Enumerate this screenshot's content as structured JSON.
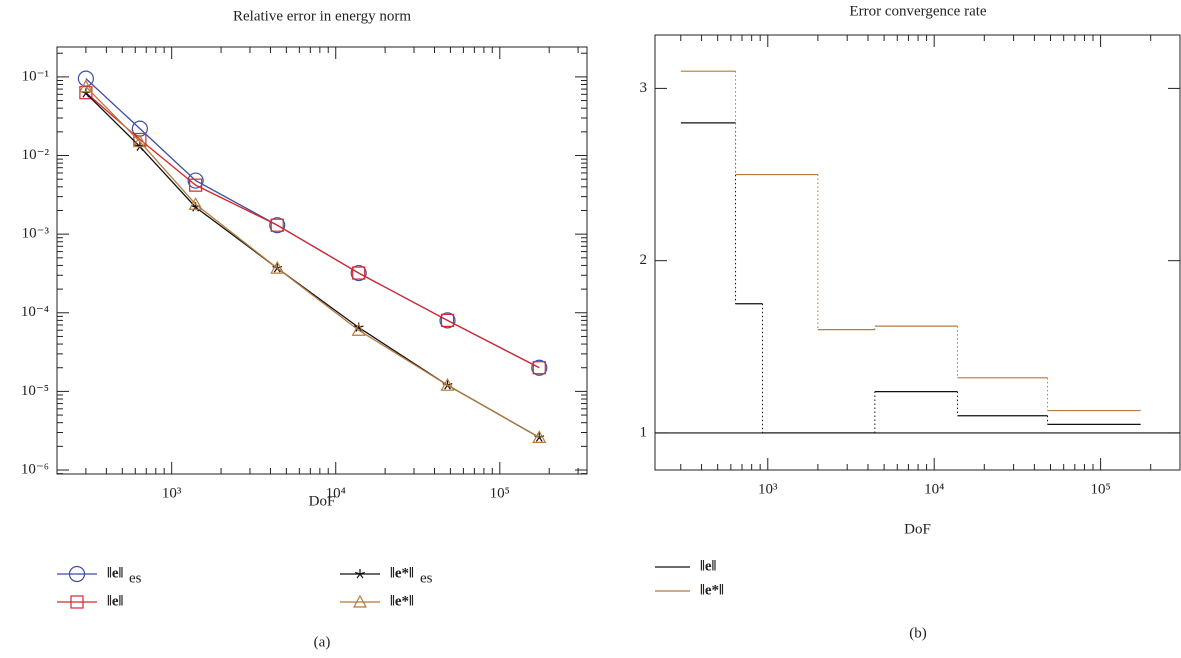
{
  "chart_data": [
    {
      "type": "loglog",
      "title": "Relative error in energy norm",
      "xlabel": "DoF",
      "panel": "(a)",
      "xlim": [
        200,
        340000
      ],
      "ylim": [
        8.9e-07,
        0.24
      ],
      "xticks": [
        {
          "value": 1000,
          "label": "10³"
        },
        {
          "value": 10000,
          "label": "10⁴"
        },
        {
          "value": 100000,
          "label": "10⁵"
        }
      ],
      "yticks": [
        {
          "value": 0.1,
          "label": "10⁻¹"
        },
        {
          "value": 0.01,
          "label": "10⁻²"
        },
        {
          "value": 0.001,
          "label": "10⁻³"
        },
        {
          "value": 0.0001,
          "label": "10⁻⁴"
        },
        {
          "value": 1e-05,
          "label": "10⁻⁵"
        },
        {
          "value": 1e-06,
          "label": "10⁻⁶"
        }
      ],
      "x": [
        300,
        640,
        1400,
        4400,
        13800,
        48000,
        174000
      ],
      "series": [
        {
          "name": "‖e‖",
          "subscript": "es",
          "color": "#3a4ea6",
          "marker": "circle",
          "values": [
            0.095,
            0.022,
            0.0048,
            0.0013,
            0.00032,
            8e-05,
            2e-05
          ]
        },
        {
          "name": "‖e‖",
          "color": "#d8272d",
          "marker": "square",
          "values": [
            0.063,
            0.016,
            0.0042,
            0.0013,
            0.00032,
            8e-05,
            2e-05
          ]
        },
        {
          "name": "‖e*‖",
          "subscript": "es",
          "color": "#111111",
          "marker": "star",
          "values": [
            0.062,
            0.013,
            0.0022,
            0.00037,
            6.5e-05,
            1.2e-05,
            2.6e-06
          ]
        },
        {
          "name": "‖e*‖",
          "color": "#b57a3c",
          "marker": "triangle",
          "values": [
            0.075,
            0.015,
            0.0024,
            0.00037,
            6e-05,
            1.2e-05,
            2.6e-06
          ]
        }
      ]
    },
    {
      "type": "steps",
      "title": "Error convergence rate",
      "xlabel": "DoF",
      "panel": "(b)",
      "xlim": [
        210,
        300000
      ],
      "ylim": [
        0.785,
        3.31
      ],
      "yticks": [
        1,
        2,
        3
      ],
      "reference": 1,
      "xticks": [
        {
          "value": 1000,
          "label": "10³"
        },
        {
          "value": 10000,
          "label": "10⁴"
        },
        {
          "value": 100000,
          "label": "10⁵"
        }
      ],
      "series": [
        {
          "name": "‖e‖",
          "color": "#111111",
          "bins": [
            300,
            640,
            930,
            4400,
            13800,
            48000,
            174000
          ],
          "values": [
            2.8,
            1.75,
            1,
            1.24,
            1.1,
            1.05
          ]
        },
        {
          "name": "‖e*‖",
          "color": "#b57a3c",
          "bins": [
            300,
            640,
            2000,
            4400,
            13800,
            48000,
            174000
          ],
          "values": [
            3.1,
            2.5,
            1.6,
            1.62,
            1.32,
            1.13
          ]
        }
      ]
    }
  ]
}
